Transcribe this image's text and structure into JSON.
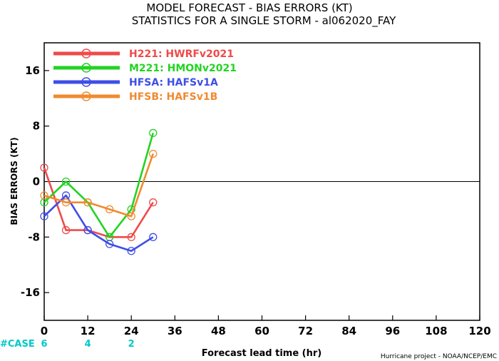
{
  "title": "MODEL FORECAST - BIAS ERRORS (KT)",
  "subtitle": "STATISTICS FOR A SINGLE STORM - al062020_FAY",
  "credit": "Hurricane project - NOAA/NCEP/EMC",
  "case_label": "#CASE",
  "case_counts": [
    {
      "x": 0,
      "label": "6"
    },
    {
      "x": 12,
      "label": "4"
    },
    {
      "x": 24,
      "label": "2"
    }
  ],
  "chart_data": {
    "type": "line",
    "title": "MODEL FORECAST - BIAS ERRORS (KT)",
    "subtitle": "STATISTICS FOR A SINGLE STORM - al062020_FAY",
    "xlabel": "Forecast lead time (hr)",
    "ylabel": "BIAS ERRORS (KT)",
    "xlim": [
      0,
      120
    ],
    "ylim": [
      -20,
      20
    ],
    "xticks": [
      0,
      12,
      24,
      36,
      48,
      60,
      72,
      84,
      96,
      108,
      120
    ],
    "xtick_labels": [
      "0",
      "12",
      "24",
      "36",
      "48",
      "60",
      "72",
      "84",
      "96",
      "108",
      "120"
    ],
    "yticks": [
      -16,
      -8,
      0,
      8,
      16
    ],
    "ytick_labels": [
      "-16",
      "-8",
      "0",
      "8",
      "16"
    ],
    "zero_line": true,
    "grid": false,
    "legend_position": "top-left",
    "series": [
      {
        "name": "H221: HWRFv2021",
        "color": "#ef4a4a",
        "x": [
          0,
          6,
          12,
          18,
          24,
          30
        ],
        "y": [
          2,
          -7,
          -7,
          -8,
          -8,
          -3
        ]
      },
      {
        "name": "M221: HMONv2021",
        "color": "#22d322",
        "x": [
          0,
          6,
          12,
          18,
          24,
          30
        ],
        "y": [
          -3,
          0,
          -3,
          -8,
          -4,
          7
        ]
      },
      {
        "name": "HFSA: HAFSv1A",
        "color": "#3e4ee8",
        "x": [
          0,
          6,
          12,
          18,
          24,
          30
        ],
        "y": [
          -5,
          -2,
          -7,
          -9,
          -10,
          -8
        ]
      },
      {
        "name": "HFSB: HAFSv1B",
        "color": "#f08a30",
        "x": [
          0,
          6,
          12,
          18,
          24,
          30
        ],
        "y": [
          -2,
          -3,
          -3,
          -4,
          -5,
          4
        ]
      }
    ]
  }
}
